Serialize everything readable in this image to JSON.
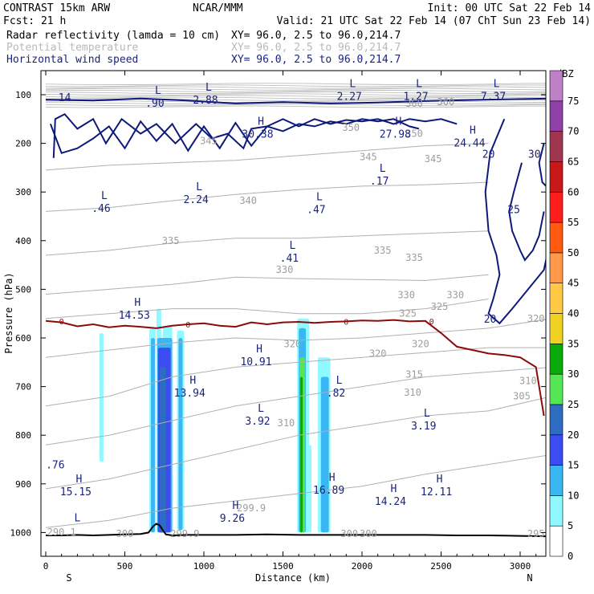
{
  "header": {
    "model": "CONTRAST 15km ARW",
    "org": "NCAR/MMM",
    "init": "Init: 00 UTC Sat 22 Feb 14",
    "fcst": "Fcst:    21 h",
    "valid": "Valid: 21 UTC Sat 22 Feb 14 (07 ChT Sun 23 Feb 14)",
    "fields": [
      {
        "name": "Radar reflectivity (lamda = 10 cm)",
        "xy": "XY=  96.0,  2.5 to  96.0,214.7",
        "color": "#000000"
      },
      {
        "name": "Potential temperature",
        "xy": "XY=  96.0,  2.5 to  96.0,214.7",
        "color": "#b8b8b8"
      },
      {
        "name": "Horizontal wind speed",
        "xy": "XY=  96.0,  2.5 to  96.0,214.7",
        "color": "#1a237e"
      }
    ]
  },
  "chart_data": {
    "type": "cross-section",
    "xlabel": "Distance (km)",
    "ylabel": "Pressure (hPa)",
    "xlim": [
      0,
      3200
    ],
    "ylim": [
      1045,
      70
    ],
    "xticks": [
      0,
      500,
      1000,
      1500,
      2000,
      2500,
      3000
    ],
    "yticks": [
      100,
      200,
      300,
      400,
      500,
      600,
      700,
      800,
      900,
      1000
    ],
    "x_end_labels": {
      "left": "S",
      "right": "N"
    },
    "colorbar": {
      "title": "dBZ",
      "levels": [
        0,
        5,
        10,
        15,
        20,
        25,
        30,
        35,
        40,
        45,
        50,
        55,
        60,
        65,
        70,
        75
      ],
      "colors": [
        "#ffffff",
        "#8ff9ff",
        "#3ab6f2",
        "#3c4cf2",
        "#2d6cc0",
        "#55e655",
        "#0aaa0a",
        "#f0d020",
        "#ffc845",
        "#ff9848",
        "#ff5a10",
        "#ff1e1e",
        "#c81818",
        "#a03550",
        "#9040a8",
        "#c080c8"
      ]
    },
    "reflectivity_cells": [
      {
        "x0": 340,
        "x1": 365,
        "p_top": 590,
        "p_bot": 855,
        "dbz": 5
      },
      {
        "x0": 655,
        "x1": 695,
        "p_top": 580,
        "p_bot": 1000,
        "dbz": 5
      },
      {
        "x0": 700,
        "x1": 730,
        "p_top": 540,
        "p_bot": 1000,
        "dbz": 5
      },
      {
        "x0": 740,
        "x1": 800,
        "p_top": 575,
        "p_bot": 1000,
        "dbz": 5
      },
      {
        "x0": 830,
        "x1": 875,
        "p_top": 585,
        "p_bot": 995,
        "dbz": 5
      },
      {
        "x0": 665,
        "x1": 690,
        "p_top": 600,
        "p_bot": 1000,
        "dbz": 10
      },
      {
        "x0": 705,
        "x1": 800,
        "p_top": 600,
        "p_bot": 1000,
        "dbz": 10
      },
      {
        "x0": 840,
        "x1": 865,
        "p_top": 600,
        "p_bot": 995,
        "dbz": 10
      },
      {
        "x0": 710,
        "x1": 790,
        "p_top": 620,
        "p_bot": 1000,
        "dbz": 15
      },
      {
        "x0": 720,
        "x1": 760,
        "p_top": 660,
        "p_bot": 1000,
        "dbz": 20
      },
      {
        "x0": 1590,
        "x1": 1665,
        "p_top": 560,
        "p_bot": 1000,
        "dbz": 5
      },
      {
        "x0": 1600,
        "x1": 1645,
        "p_top": 580,
        "p_bot": 1000,
        "dbz": 10
      },
      {
        "x0": 1605,
        "x1": 1640,
        "p_top": 640,
        "p_bot": 1000,
        "dbz": 25
      },
      {
        "x0": 1608,
        "x1": 1625,
        "p_top": 680,
        "p_bot": 1000,
        "dbz": 30
      },
      {
        "x0": 1660,
        "x1": 1680,
        "p_top": 820,
        "p_bot": 1000,
        "dbz": 5
      },
      {
        "x0": 1720,
        "x1": 1800,
        "p_top": 640,
        "p_bot": 1000,
        "dbz": 5
      },
      {
        "x0": 1740,
        "x1": 1790,
        "p_top": 680,
        "p_bot": 1000,
        "dbz": 10
      }
    ],
    "freezing_level": {
      "label": "0",
      "x": [
        0,
        100,
        200,
        300,
        400,
        500,
        600,
        700,
        800,
        900,
        1000,
        1100,
        1200,
        1300,
        1400,
        1500,
        1600,
        1700,
        1800,
        1900,
        2000,
        2100,
        2200,
        2300,
        2400,
        2500,
        2600,
        2700,
        2800,
        2900,
        3000,
        3100,
        3150
      ],
      "p": [
        565,
        568,
        576,
        572,
        578,
        575,
        577,
        580,
        575,
        572,
        570,
        575,
        577,
        568,
        572,
        568,
        567,
        569,
        567,
        566,
        564,
        565,
        563,
        566,
        565,
        590,
        618,
        625,
        632,
        635,
        640,
        660,
        760
      ]
    },
    "theta_contours": [
      {
        "label": "345",
        "x": [
          0,
          400,
          800,
          1200,
          1600,
          2000,
          2400,
          2800
        ],
        "p": [
          255,
          245,
          240,
          235,
          225,
          215,
          205,
          200
        ]
      },
      {
        "label": "340",
        "x": [
          0,
          400,
          800,
          1200,
          1600,
          2000,
          2400,
          2800
        ],
        "p": [
          340,
          332,
          318,
          305,
          295,
          288,
          285,
          280
        ]
      },
      {
        "label": "335",
        "x": [
          0,
          400,
          800,
          1200,
          1600,
          2000,
          2400,
          2800
        ],
        "p": [
          430,
          420,
          405,
          395,
          395,
          390,
          385,
          380
        ]
      },
      {
        "label": "330",
        "x": [
          0,
          400,
          800,
          1200,
          1600,
          2000,
          2400,
          2800
        ],
        "p": [
          510,
          500,
          490,
          475,
          478,
          480,
          482,
          470
        ]
      },
      {
        "label": "325",
        "x": [
          0,
          400,
          800,
          1200,
          1600,
          2000,
          2400,
          2800
        ],
        "p": [
          560,
          550,
          540,
          540,
          550,
          550,
          540,
          520
        ]
      },
      {
        "label": "320",
        "x": [
          0,
          400,
          800,
          1200,
          1600,
          2000,
          2400,
          2800,
          3200
        ],
        "p": [
          640,
          625,
          610,
          600,
          605,
          600,
          590,
          580,
          560
        ]
      },
      {
        "label": "315",
        "x": [
          0,
          400,
          800,
          1200,
          1600,
          2000,
          2400,
          2800,
          3200
        ],
        "p": [
          740,
          720,
          680,
          660,
          650,
          640,
          630,
          620,
          620
        ]
      },
      {
        "label": "310",
        "x": [
          0,
          400,
          800,
          1200,
          1600,
          2000,
          2400,
          2800,
          3200
        ],
        "p": [
          820,
          800,
          770,
          740,
          720,
          700,
          680,
          670,
          660
        ]
      },
      {
        "label": "305",
        "x": [
          0,
          400,
          800,
          1200,
          1600,
          2000,
          2400,
          2800,
          3200
        ],
        "p": [
          910,
          890,
          860,
          830,
          800,
          780,
          760,
          750,
          720
        ]
      },
      {
        "label": "300",
        "x": [
          0,
          400,
          800,
          1200,
          1600,
          2000,
          2400,
          2800,
          3200
        ],
        "p": [
          990,
          975,
          950,
          935,
          920,
          905,
          880,
          860,
          840
        ]
      }
    ],
    "theta_labels": [
      {
        "text": "345",
        "x": 1030,
        "p": 195
      },
      {
        "text": "350",
        "x": 1930,
        "p": 168
      },
      {
        "text": "345",
        "x": 2040,
        "p": 228
      },
      {
        "text": "345",
        "x": 2450,
        "p": 232
      },
      {
        "text": "340",
        "x": 1280,
        "p": 318
      },
      {
        "text": "335",
        "x": 790,
        "p": 400
      },
      {
        "text": "335",
        "x": 2130,
        "p": 420
      },
      {
        "text": "335",
        "x": 2330,
        "p": 435
      },
      {
        "text": "330",
        "x": 1510,
        "p": 460
      },
      {
        "text": "330",
        "x": 2280,
        "p": 512
      },
      {
        "text": "330",
        "x": 2590,
        "p": 512
      },
      {
        "text": "325",
        "x": 2290,
        "p": 550
      },
      {
        "text": "325",
        "x": 2490,
        "p": 536
      },
      {
        "text": "320",
        "x": 1560,
        "p": 612
      },
      {
        "text": "320",
        "x": 2100,
        "p": 632
      },
      {
        "text": "320",
        "x": 2370,
        "p": 612
      },
      {
        "text": "320",
        "x": 3100,
        "p": 560
      },
      {
        "text": "315",
        "x": 2330,
        "p": 675
      },
      {
        "text": "310",
        "x": 1520,
        "p": 775
      },
      {
        "text": "310",
        "x": 2320,
        "p": 712
      },
      {
        "text": "310",
        "x": 3050,
        "p": 688
      },
      {
        "text": "305",
        "x": 3010,
        "p": 720
      },
      {
        "text": "300",
        "x": 500,
        "p": 1003
      },
      {
        "text": "299.9",
        "x": 1300,
        "p": 950
      },
      {
        "text": "299.9",
        "x": 880,
        "p": 1003
      },
      {
        "text": "290.1",
        "x": 100,
        "p": 999
      },
      {
        "text": "300",
        "x": 1920,
        "p": 1003
      },
      {
        "text": "300",
        "x": 2040,
        "p": 1003
      },
      {
        "text": "295",
        "x": 3100,
        "p": 1003
      },
      {
        "text": "360",
        "x": 2330,
        "p": 118
      },
      {
        "text": "360",
        "x": 2530,
        "p": 115
      },
      {
        "text": "350",
        "x": 2330,
        "p": 180
      }
    ],
    "wind_contours": [
      {
        "label": "",
        "x": [
          0,
          300,
          600,
          900,
          1200,
          1500,
          1800,
          2100,
          2400,
          2800,
          3200
        ],
        "p": [
          110,
          112,
          108,
          112,
          118,
          115,
          118,
          116,
          113,
          110,
          108
        ]
      },
      {
        "label": "",
        "x": [
          30,
          100,
          200,
          300,
          400,
          500,
          600,
          700,
          800,
          900,
          1000,
          1100,
          1200,
          1300,
          1400,
          1500,
          1600,
          1700,
          1800,
          1900,
          2000,
          2100,
          2200,
          2300,
          2400,
          2500,
          2600
        ],
        "p": [
          160,
          220,
          210,
          190,
          165,
          210,
          155,
          195,
          160,
          215,
          165,
          210,
          158,
          205,
          165,
          150,
          165,
          150,
          160,
          152,
          155,
          150,
          160,
          150,
          155,
          150,
          160
        ]
      },
      {
        "label": "",
        "x": [
          50,
          60,
          120,
          200,
          300,
          380,
          480,
          600,
          700,
          820,
          950,
          1050,
          1150,
          1250,
          1300,
          1400,
          1500,
          1600,
          1700,
          1800,
          1900,
          2000,
          2100,
          2200,
          2300,
          2360
        ],
        "p": [
          230,
          150,
          140,
          170,
          150,
          200,
          150,
          180,
          160,
          200,
          160,
          190,
          180,
          210,
          170,
          165,
          175,
          160,
          165,
          155,
          160,
          150,
          155,
          150,
          165,
          170
        ]
      },
      {
        "label": "20",
        "x": [
          2900,
          2810,
          2780,
          2800,
          2850,
          2870,
          2830,
          2800,
          2870,
          2950,
          3050,
          3150,
          3190
        ],
        "p": [
          150,
          220,
          300,
          380,
          430,
          470,
          520,
          550,
          570,
          540,
          500,
          460,
          400
        ]
      },
      {
        "label": "25",
        "x": [
          3010,
          2960,
          2930,
          2950,
          3000,
          3030,
          3080,
          3120,
          3150
        ],
        "p": [
          240,
          300,
          340,
          380,
          420,
          440,
          420,
          390,
          340
        ]
      },
      {
        "label": "30",
        "x": [
          3150,
          3120,
          3140,
          3170,
          3195
        ],
        "p": [
          200,
          240,
          280,
          290,
          260
        ]
      }
    ],
    "wind_labels": [
      {
        "text": "20",
        "x": 2800,
        "p": 223
      },
      {
        "text": "30",
        "x": 3090,
        "p": 223
      },
      {
        "text": "25",
        "x": 2960,
        "p": 337
      },
      {
        "text": "20",
        "x": 2810,
        "p": 562
      }
    ],
    "extrema": [
      {
        "type": "",
        "value": "14",
        "x": 120,
        "p": 90
      },
      {
        "type": "L",
        "value": ".90",
        "x": 690,
        "p": 102
      },
      {
        "type": "L",
        "value": "2.88",
        "x": 1010,
        "p": 95
      },
      {
        "type": "L",
        "value": "2.27",
        "x": 1920,
        "p": 88
      },
      {
        "type": "L",
        "value": "1.27",
        "x": 2340,
        "p": 88
      },
      {
        "type": "L",
        "value": "7.37",
        "x": 2830,
        "p": 88
      },
      {
        "type": "H",
        "value": "30.38",
        "x": 1340,
        "p": 165
      },
      {
        "type": "H",
        "value": "27.98",
        "x": 2210,
        "p": 165
      },
      {
        "type": "H",
        "value": "24.44",
        "x": 2680,
        "p": 183
      },
      {
        "type": "L",
        "value": "2.24",
        "x": 950,
        "p": 300
      },
      {
        "type": "L",
        "value": ".17",
        "x": 2110,
        "p": 262
      },
      {
        "type": "L",
        "value": ".46",
        "x": 350,
        "p": 318
      },
      {
        "type": "L",
        "value": ".47",
        "x": 1710,
        "p": 320
      },
      {
        "type": "L",
        "value": ".41",
        "x": 1540,
        "p": 420
      },
      {
        "type": "H",
        "value": "14.53",
        "x": 560,
        "p": 537
      },
      {
        "type": "H",
        "value": "10.91",
        "x": 1330,
        "p": 633
      },
      {
        "type": "H",
        "value": "13.94",
        "x": 910,
        "p": 697
      },
      {
        "type": "L",
        "value": "3.92",
        "x": 1340,
        "p": 755
      },
      {
        "type": "L",
        "value": ".82",
        "x": 1835,
        "p": 697
      },
      {
        "type": "L",
        "value": "3.19",
        "x": 2390,
        "p": 765
      },
      {
        "type": "",
        "value": ".76",
        "x": 60,
        "p": 845
      },
      {
        "type": "H",
        "value": "15.15",
        "x": 190,
        "p": 900
      },
      {
        "type": "H",
        "value": "16.89",
        "x": 1790,
        "p": 897
      },
      {
        "type": "H",
        "value": "12.11",
        "x": 2470,
        "p": 900
      },
      {
        "type": "H",
        "value": "14.24",
        "x": 2180,
        "p": 920
      },
      {
        "type": "H",
        "value": "9.26",
        "x": 1180,
        "p": 955
      },
      {
        "type": "L",
        "value": "",
        "x": 180,
        "p": 980
      }
    ],
    "terrain": {
      "x": [
        0,
        100,
        200,
        300,
        400,
        500,
        600,
        650,
        680,
        700,
        720,
        740,
        760,
        800,
        900,
        1000,
        1200,
        1400,
        1600,
        1800,
        2000,
        2200,
        2400,
        2600,
        2800,
        3000,
        3200
      ],
      "p": [
        1006,
        1006,
        1005,
        1006,
        1005,
        1004,
        1003,
        1000,
        987,
        982,
        985,
        995,
        1004,
        1006,
        1005,
        1005,
        1005,
        1004,
        1005,
        1005,
        1005,
        1005,
        1005,
        1006,
        1006,
        1007,
        1008
      ]
    }
  }
}
